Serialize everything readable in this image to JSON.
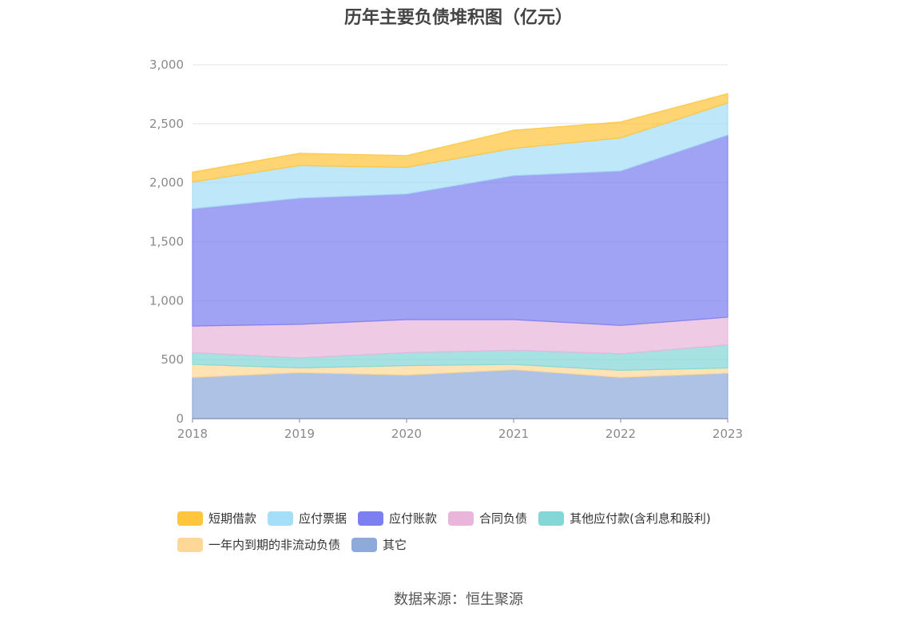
{
  "chart_data": {
    "type": "area",
    "stacked": true,
    "title": "历年主要负债堆积图（亿元）",
    "categories": [
      "2018",
      "2019",
      "2020",
      "2021",
      "2022",
      "2023"
    ],
    "ylim": [
      0,
      3000
    ],
    "yticks": [
      "0",
      "500",
      "1,000",
      "1,500",
      "2,000",
      "2,500",
      "3,000"
    ],
    "ytick_values": [
      0,
      500,
      1000,
      1500,
      2000,
      2500,
      3000
    ],
    "grid": true,
    "legend_position": "bottom",
    "series": [
      {
        "name": "其它",
        "color": "#8eaadb",
        "values": [
          350,
          390,
          370,
          415,
          350,
          385
        ]
      },
      {
        "name": "一年内到期的非流动负债",
        "color": "#ffd899",
        "values": [
          110,
          40,
          80,
          45,
          60,
          45
        ]
      },
      {
        "name": "其他应付款(含利息和股利)",
        "color": "#83d7d7",
        "values": [
          100,
          85,
          110,
          120,
          140,
          195
        ]
      },
      {
        "name": "合同负债",
        "color": "#e9b5db",
        "values": [
          225,
          285,
          280,
          260,
          240,
          235
        ]
      },
      {
        "name": "应付账款",
        "color": "#7b7ff0",
        "values": [
          995,
          1070,
          1065,
          1220,
          1310,
          1545
        ]
      },
      {
        "name": "应付票据",
        "color": "#a5def7",
        "values": [
          225,
          275,
          225,
          230,
          280,
          270
        ]
      },
      {
        "name": "短期借款",
        "color": "#ffc53d",
        "values": [
          85,
          105,
          100,
          155,
          135,
          80
        ]
      }
    ],
    "legend_order": [
      "短期借款",
      "应付票据",
      "应付账款",
      "合同负债",
      "其他应付款(含利息和股利)",
      "一年内到期的非流动负债",
      "其它"
    ]
  },
  "source_text": "数据来源：恒生聚源"
}
